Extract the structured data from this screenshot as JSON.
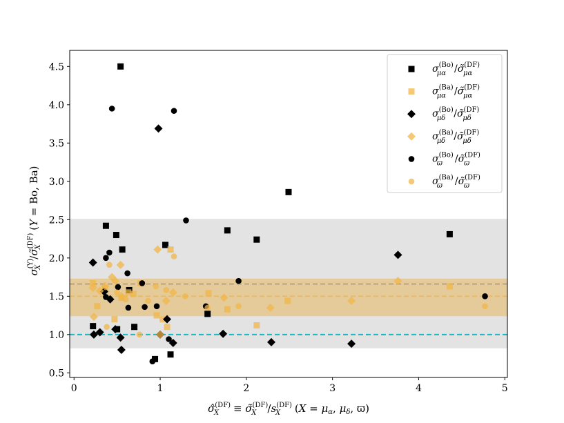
{
  "chart_data": {
    "type": "scatter",
    "title": "",
    "xlabel": "σ̂X(DF) ≡ σ̃X(DF)/sX(DF)   (X = μα, μδ, ϖ)",
    "ylabel": "σX(Y)/σ̃X(DF)   (Y = Bo, Ba)",
    "xlim": [
      -0.05,
      5.03
    ],
    "ylim": [
      0.44,
      4.71
    ],
    "x_ticks": [
      0,
      1,
      2,
      3,
      4,
      5
    ],
    "y_ticks": [
      0.5,
      1.0,
      1.5,
      2.0,
      2.5,
      3.0,
      3.5,
      4.0,
      4.5
    ],
    "x_tick_labels": [
      "0",
      "1",
      "2",
      "3",
      "4",
      "5"
    ],
    "y_tick_labels": [
      "0.5",
      "1.0",
      "1.5",
      "2.0",
      "2.5",
      "3.0",
      "3.5",
      "4.0",
      "4.5"
    ],
    "grid": false,
    "legend_position": "top-right",
    "bands": [
      {
        "name": "gray-band",
        "y0": 0.82,
        "y1": 2.51,
        "color": "#c8c8c8"
      },
      {
        "name": "orange-band",
        "y0": 1.24,
        "y1": 1.73,
        "color": "#e8a635"
      }
    ],
    "reference_lines": [
      {
        "name": "unity-line",
        "y": 1.0,
        "color": "#1ab8c4",
        "style": "dashed"
      },
      {
        "name": "gray-mean-line",
        "y": 1.66,
        "color": "#b09878",
        "style": "dashed"
      },
      {
        "name": "orange-mean-line",
        "y": 1.5,
        "color": "#f0b848",
        "style": "dashed"
      }
    ],
    "series": [
      {
        "name": "σμα(Bo)/σ̃μα(DF)",
        "legend_main": "σ",
        "legend_sub": "μα",
        "legend_sup": "(Bo)",
        "legend_main2": "σ̃",
        "legend_sub2": "μα",
        "legend_sup2": "(DF)",
        "marker": "square",
        "color": "#000000",
        "opacity": 1,
        "points": [
          [
            0.54,
            4.5
          ],
          [
            0.22,
            1.11
          ],
          [
            0.37,
            2.42
          ],
          [
            0.49,
            2.3
          ],
          [
            0.56,
            2.11
          ],
          [
            0.64,
            1.58
          ],
          [
            0.7,
            1.1
          ],
          [
            0.5,
            1.07
          ],
          [
            0.94,
            0.68
          ],
          [
            1.06,
            2.17
          ],
          [
            1.12,
            0.74
          ],
          [
            1.55,
            1.27
          ],
          [
            1.78,
            2.36
          ],
          [
            2.12,
            2.24
          ],
          [
            2.49,
            2.86
          ],
          [
            4.36,
            2.31
          ]
        ]
      },
      {
        "name": "σμα(Ba)/σ̃μα(DF)",
        "legend_main": "σ",
        "legend_sub": "μα",
        "legend_sup": "(Ba)",
        "legend_main2": "σ̃",
        "legend_sub2": "μα",
        "legend_sup2": "(DF)",
        "marker": "square",
        "color": "#f0b548",
        "opacity": 0.75,
        "points": [
          [
            0.22,
            1.67
          ],
          [
            0.27,
            1.37
          ],
          [
            0.36,
            1.6
          ],
          [
            0.47,
            1.2
          ],
          [
            0.55,
            1.48
          ],
          [
            0.63,
            1.55
          ],
          [
            0.69,
            1.53
          ],
          [
            0.77,
            1.67
          ],
          [
            0.96,
            1.25
          ],
          [
            1.03,
            1.2
          ],
          [
            1.08,
            1.1
          ],
          [
            1.12,
            2.11
          ],
          [
            1.56,
            1.54
          ],
          [
            1.78,
            1.33
          ],
          [
            2.12,
            1.12
          ],
          [
            2.48,
            1.44
          ],
          [
            4.36,
            1.63
          ]
        ]
      },
      {
        "name": "σμδ(Bo)/σ̃μδ(DF)",
        "legend_main": "σ",
        "legend_sub": "μδ",
        "legend_sup": "(Bo)",
        "legend_main2": "σ̃",
        "legend_sub2": "μδ",
        "legend_sup2": "(DF)",
        "marker": "diamond",
        "color": "#000000",
        "opacity": 1,
        "points": [
          [
            0.22,
            1.94
          ],
          [
            0.23,
            1.0
          ],
          [
            0.3,
            1.03
          ],
          [
            0.35,
            1.56
          ],
          [
            0.42,
            1.46
          ],
          [
            0.48,
            1.07
          ],
          [
            0.54,
            0.96
          ],
          [
            0.55,
            0.8
          ],
          [
            0.98,
            3.69
          ],
          [
            1.0,
            1.0
          ],
          [
            1.08,
            1.2
          ],
          [
            1.15,
            0.89
          ],
          [
            1.73,
            1.01
          ],
          [
            2.29,
            0.9
          ],
          [
            3.22,
            0.88
          ],
          [
            3.76,
            2.04
          ]
        ]
      },
      {
        "name": "σμδ(Ba)/σ̃μδ(DF)",
        "legend_main": "σ",
        "legend_sub": "μδ",
        "legend_sup": "(Ba)",
        "legend_main2": "σ̃",
        "legend_sub2": "μδ",
        "legend_sup2": "(DF)",
        "marker": "diamond",
        "color": "#f0b548",
        "opacity": 0.75,
        "points": [
          [
            0.22,
            1.61
          ],
          [
            0.23,
            1.23
          ],
          [
            0.3,
            1.57
          ],
          [
            0.36,
            1.63
          ],
          [
            0.44,
            1.75
          ],
          [
            0.48,
            1.7
          ],
          [
            0.54,
            1.91
          ],
          [
            0.55,
            1.5
          ],
          [
            0.97,
            2.11
          ],
          [
            1.0,
            1.0
          ],
          [
            1.07,
            1.44
          ],
          [
            1.15,
            1.55
          ],
          [
            1.74,
            1.48
          ],
          [
            2.28,
            1.35
          ],
          [
            3.22,
            1.44
          ],
          [
            3.76,
            1.7
          ]
        ]
      },
      {
        "name": "σϖ(Bo)/σ̃ϖ(DF)",
        "legend_main": "σ",
        "legend_sub": "ϖ",
        "legend_sup": "(Bo)",
        "legend_main2": "σ̃",
        "legend_sub2": "ϖ",
        "legend_sup2": "(DF)",
        "marker": "circle",
        "color": "#000000",
        "opacity": 1,
        "points": [
          [
            0.44,
            3.95
          ],
          [
            1.16,
            3.92
          ],
          [
            1.3,
            2.49
          ],
          [
            0.41,
            2.07
          ],
          [
            0.37,
            2.0
          ],
          [
            0.37,
            1.49
          ],
          [
            0.51,
            1.62
          ],
          [
            0.62,
            1.8
          ],
          [
            0.63,
            1.35
          ],
          [
            0.79,
            1.67
          ],
          [
            0.82,
            1.36
          ],
          [
            0.96,
            1.37
          ],
          [
            1.1,
            0.94
          ],
          [
            0.91,
            0.65
          ],
          [
            1.53,
            1.37
          ],
          [
            1.91,
            1.7
          ],
          [
            4.77,
            1.5
          ]
        ]
      },
      {
        "name": "σϖ(Ba)/σ̃ϖ(DF)",
        "legend_main": "σ",
        "legend_sub": "ϖ",
        "legend_sup": "(Ba)",
        "legend_main2": "σ̃",
        "legend_sub2": "ϖ",
        "legend_sup2": "(DF)",
        "marker": "circle",
        "color": "#f0b548",
        "opacity": 0.75,
        "points": [
          [
            0.41,
            1.91
          ],
          [
            0.38,
            1.1
          ],
          [
            0.5,
            1.55
          ],
          [
            0.6,
            1.46
          ],
          [
            0.76,
            1.0
          ],
          [
            0.86,
            1.44
          ],
          [
            0.95,
            1.63
          ],
          [
            1.07,
            1.58
          ],
          [
            1.16,
            2.02
          ],
          [
            1.29,
            1.5
          ],
          [
            1.55,
            1.35
          ],
          [
            1.91,
            1.37
          ],
          [
            4.77,
            1.37
          ]
        ]
      }
    ]
  }
}
